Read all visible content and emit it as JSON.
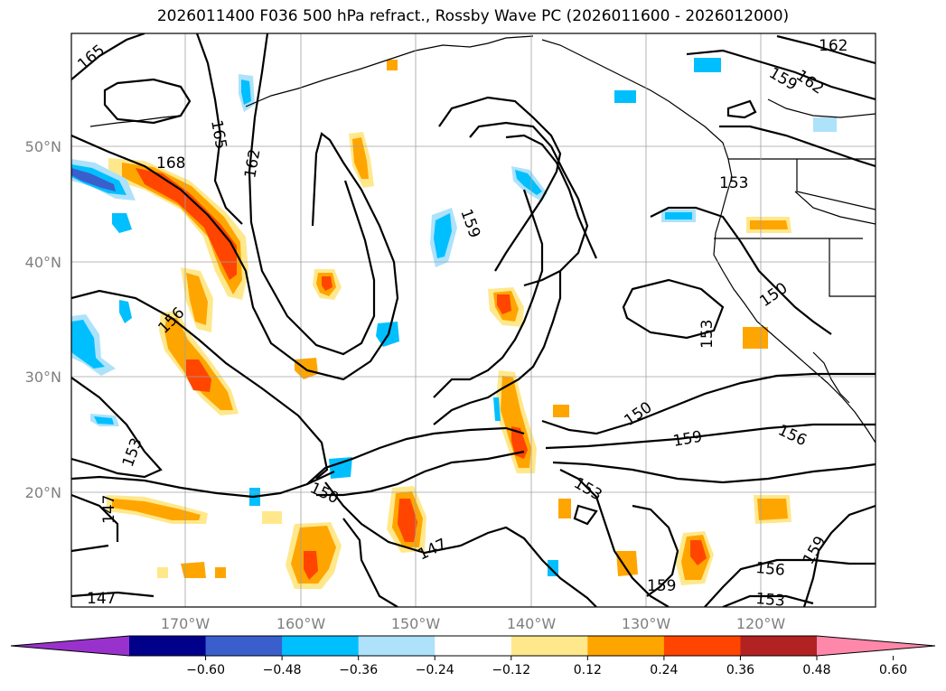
{
  "title": "2026011400 F036 500 hPa refract., Rossby Wave PC (2026011600 - 2026012000)",
  "map": {
    "lat_ticks": [
      "50°N",
      "40°N",
      "30°N",
      "20°N"
    ],
    "lon_ticks": [
      "170°W",
      "160°W",
      "150°W",
      "140°W",
      "130°W",
      "120°W"
    ],
    "contour_labels": [
      "165",
      "168",
      "165",
      "162",
      "156",
      "159",
      "153",
      "147",
      "147",
      "150",
      "147",
      "150",
      "153",
      "159",
      "153",
      "150",
      "159",
      "153",
      "156",
      "162",
      "159",
      "162",
      "156",
      "159",
      "156",
      "153"
    ]
  },
  "colorbar": {
    "colors": [
      "#9932CC",
      "#00008B",
      "#3A5FCD",
      "#00BFFF",
      "#ADE2FA",
      "#FFFFFF",
      "#FFE88C",
      "#FFA500",
      "#FF4500",
      "#B22222",
      "#FF88AA"
    ],
    "tick_labels": [
      "−0.60",
      "−0.48",
      "−0.36",
      "−0.24",
      "−0.12",
      "0.12",
      "0.24",
      "0.36",
      "0.48",
      "0.60"
    ]
  }
}
